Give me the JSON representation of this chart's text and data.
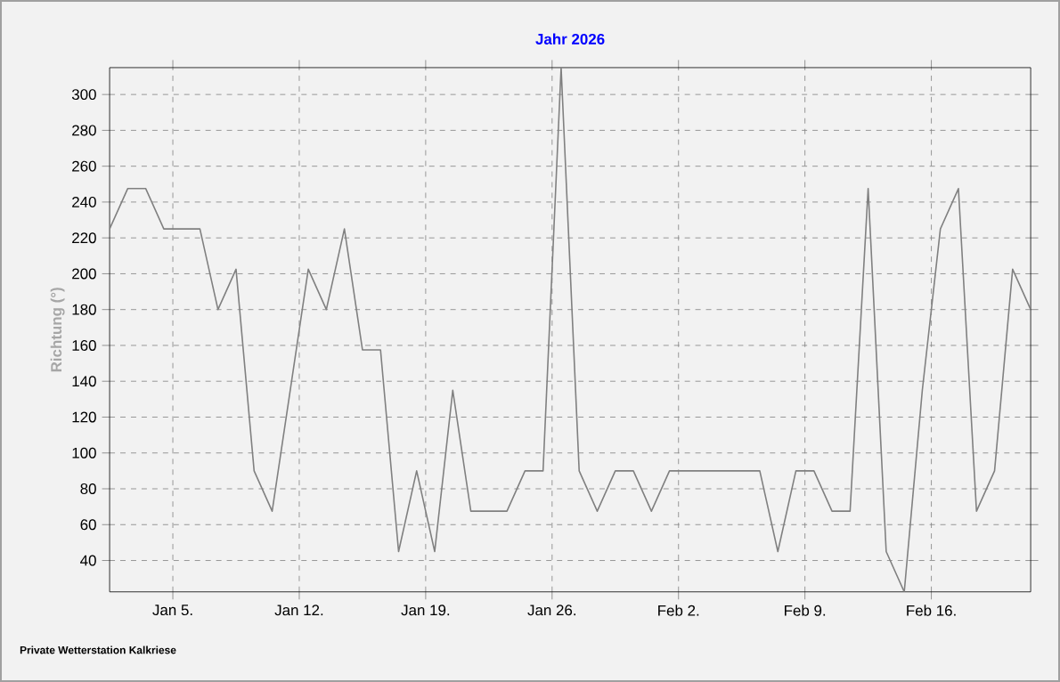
{
  "chart_data": {
    "type": "line",
    "title": "Jahr 2026",
    "ylabel": "Richtung (°)",
    "x": [
      "2026-01-01T12:00",
      "2026-01-02T12:00",
      "2026-01-03T12:00",
      "2026-01-04T12:00",
      "2026-01-05T12:00",
      "2026-01-06T12:00",
      "2026-01-07T12:00",
      "2026-01-08T12:00",
      "2026-01-09T12:00",
      "2026-01-10T12:00",
      "2026-01-11T12:00",
      "2026-01-12T12:00",
      "2026-01-13T12:00",
      "2026-01-14T12:00",
      "2026-01-15T12:00",
      "2026-01-16T12:00",
      "2026-01-17T12:00",
      "2026-01-18T12:00",
      "2026-01-19T12:00",
      "2026-01-20T12:00",
      "2026-01-21T12:00",
      "2026-01-22T12:00",
      "2026-01-23T12:00",
      "2026-01-24T12:00",
      "2026-01-25T12:00",
      "2026-01-26T12:00",
      "2026-01-27T12:00",
      "2026-01-28T12:00",
      "2026-01-29T12:00",
      "2026-01-30T12:00",
      "2026-01-31T12:00",
      "2026-02-01T12:00",
      "2026-02-02T12:00",
      "2026-02-03T12:00",
      "2026-02-04T12:00",
      "2026-02-05T12:00",
      "2026-02-06T12:00",
      "2026-02-07T12:00",
      "2026-02-08T12:00",
      "2026-02-09T12:00",
      "2026-02-10T12:00",
      "2026-02-11T12:00",
      "2026-02-12T12:00",
      "2026-02-13T12:00",
      "2026-02-14T12:00",
      "2026-02-15T12:00",
      "2026-02-16T12:00",
      "2026-02-17T12:00",
      "2026-02-18T12:00",
      "2026-02-19T12:00",
      "2026-02-20T12:00",
      "2026-02-21T12:00"
    ],
    "series": [
      {
        "color": "#808080",
        "values": [
          225,
          247.5,
          247.5,
          225,
          225,
          225,
          180,
          202.5,
          90,
          67.5,
          135,
          202.5,
          180,
          225,
          157.5,
          157.5,
          45,
          90,
          45,
          135,
          67.5,
          67.5,
          67.5,
          90,
          90,
          315,
          90,
          67.5,
          90,
          90,
          67.5,
          90,
          90,
          90,
          90,
          90,
          90,
          45,
          90,
          90,
          67.5,
          67.5,
          247.5,
          45,
          22.5,
          135,
          225,
          247.5,
          67.5,
          90,
          202.5,
          180
        ]
      }
    ],
    "xlim": [
      "2026-01-01T12:00",
      "2026-02-21T12:00"
    ],
    "xticks": [
      {
        "value": "2026-01-05",
        "label": "Jan 5."
      },
      {
        "value": "2026-01-12",
        "label": "Jan 12."
      },
      {
        "value": "2026-01-19",
        "label": "Jan 19."
      },
      {
        "value": "2026-01-26",
        "label": "Jan 26."
      },
      {
        "value": "2026-02-02",
        "label": "Feb 2."
      },
      {
        "value": "2026-02-09",
        "label": "Feb 9."
      },
      {
        "value": "2026-02-16",
        "label": "Feb 16."
      }
    ],
    "ylim": [
      22.5,
      315
    ],
    "yticks": [
      40,
      60,
      80,
      100,
      120,
      140,
      160,
      180,
      200,
      220,
      240,
      260,
      280,
      300
    ],
    "grid": true,
    "marker": "none",
    "line_style": "solid",
    "annotations": [
      "Private Wetterstation Kalkriese"
    ]
  }
}
